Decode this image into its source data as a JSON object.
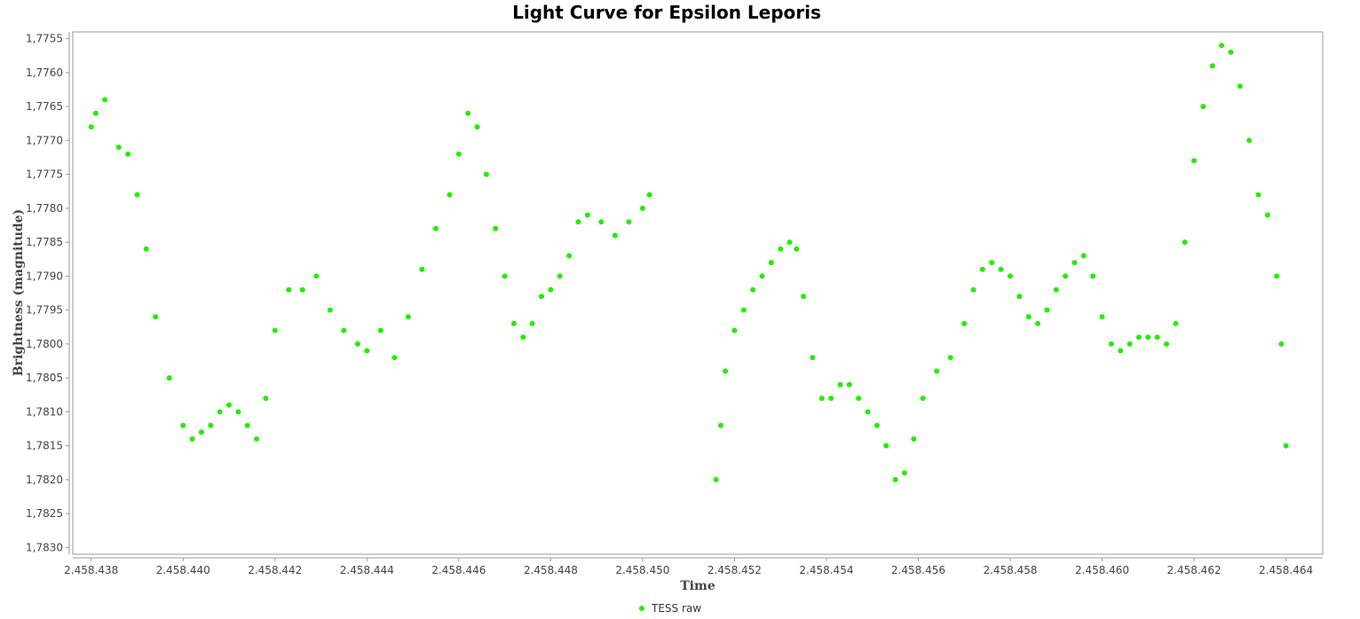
{
  "chart_data": {
    "type": "scatter",
    "title": "Light Curve for Epsilon Leporis",
    "xlabel": "Time",
    "ylabel": "Brightness (magnitude)",
    "xlim": [
      2458437.6,
      2458464.8
    ],
    "ylim": [
      1.7754,
      1.7831
    ],
    "y_inverted": true,
    "grid": false,
    "legend_position": "bottom-center",
    "x_ticks": [
      2458438,
      2458440,
      2458442,
      2458444,
      2458446,
      2458448,
      2458450,
      2458452,
      2458454,
      2458456,
      2458458,
      2458460,
      2458462,
      2458464
    ],
    "x_tick_labels": [
      "2.458.438",
      "2.458.440",
      "2.458.442",
      "2.458.444",
      "2.458.446",
      "2.458.448",
      "2.458.450",
      "2.458.452",
      "2.458.454",
      "2.458.456",
      "2.458.458",
      "2.458.460",
      "2.458.462",
      "2.458.464"
    ],
    "y_ticks": [
      1.7755,
      1.776,
      1.7765,
      1.777,
      1.7775,
      1.778,
      1.7785,
      1.779,
      1.7795,
      1.78,
      1.7805,
      1.781,
      1.7815,
      1.782,
      1.7825,
      1.783
    ],
    "y_tick_labels": [
      "1,7755",
      "1,7760",
      "1,7765",
      "1,7770",
      "1,7775",
      "1,7780",
      "1,7785",
      "1,7790",
      "1,7795",
      "1,7800",
      "1,7805",
      "1,7810",
      "1,7815",
      "1,7820",
      "1,7825",
      "1,7830"
    ],
    "series": [
      {
        "name": "TESS raw",
        "color": "#22ee00",
        "segments": [
          {
            "x": [
              2458438.0,
              2458438.1,
              2458438.3,
              2458438.6,
              2458438.8,
              2458439.0,
              2458439.2,
              2458439.4,
              2458439.7,
              2458440.0,
              2458440.2,
              2458440.4,
              2458440.6,
              2458440.8,
              2458441.0,
              2458441.2,
              2458441.4,
              2458441.6,
              2458441.8,
              2458442.0,
              2458442.3,
              2458442.6,
              2458442.9,
              2458443.2,
              2458443.5,
              2458443.8,
              2458444.0,
              2458444.3,
              2458444.6,
              2458444.9,
              2458445.2,
              2458445.5,
              2458445.8,
              2458446.0,
              2458446.2,
              2458446.4,
              2458446.6,
              2458446.8,
              2458447.0,
              2458447.2,
              2458447.4,
              2458447.6,
              2458447.8,
              2458448.0,
              2458448.2,
              2458448.4,
              2458448.6,
              2458448.8,
              2458449.1,
              2458449.4,
              2458449.7,
              2458450.0,
              2458450.15
            ],
            "y": [
              1.7768,
              1.7766,
              1.7764,
              1.7771,
              1.7772,
              1.7778,
              1.7786,
              1.7796,
              1.7805,
              1.7812,
              1.7814,
              1.7813,
              1.7812,
              1.781,
              1.7809,
              1.781,
              1.7812,
              1.7814,
              1.7808,
              1.7798,
              1.7792,
              1.7792,
              1.779,
              1.7795,
              1.7798,
              1.78,
              1.7801,
              1.7798,
              1.7802,
              1.7796,
              1.7789,
              1.7783,
              1.7778,
              1.7772,
              1.7766,
              1.7768,
              1.7775,
              1.7783,
              1.779,
              1.7797,
              1.7799,
              1.7797,
              1.7793,
              1.7792,
              1.779,
              1.7787,
              1.7782,
              1.7781,
              1.7782,
              1.7784,
              1.7782,
              1.778,
              1.7778
            ]
          },
          {
            "x": [
              2458451.6,
              2458451.7,
              2458451.8,
              2458452.0,
              2458452.2,
              2458452.4,
              2458452.6,
              2458452.8,
              2458453.0,
              2458453.2,
              2458453.35,
              2458453.5,
              2458453.7,
              2458453.9,
              2458454.1,
              2458454.3,
              2458454.5,
              2458454.7,
              2458454.9,
              2458455.1,
              2458455.3,
              2458455.5,
              2458455.7,
              2458455.9,
              2458456.1,
              2458456.4,
              2458456.7,
              2458457.0,
              2458457.2,
              2458457.4,
              2458457.6,
              2458457.8,
              2458458.0,
              2458458.2,
              2458458.4,
              2458458.6,
              2458458.8,
              2458459.0,
              2458459.2,
              2458459.4,
              2458459.6,
              2458459.8,
              2458460.0,
              2458460.2,
              2458460.4,
              2458460.6,
              2458460.8,
              2458461.0,
              2458461.2,
              2458461.4,
              2458461.6,
              2458461.8,
              2458462.0,
              2458462.2,
              2458462.4,
              2458462.6,
              2458462.8,
              2458463.0,
              2458463.2,
              2458463.4,
              2458463.6,
              2458463.8,
              2458463.9,
              2458464.0
            ],
            "y": [
              1.782,
              1.7812,
              1.7804,
              1.7798,
              1.7795,
              1.7792,
              1.779,
              1.7788,
              1.7786,
              1.7785,
              1.7786,
              1.7793,
              1.7802,
              1.7808,
              1.7808,
              1.7806,
              1.7806,
              1.7808,
              1.781,
              1.7812,
              1.7815,
              1.782,
              1.7819,
              1.7814,
              1.7808,
              1.7804,
              1.7802,
              1.7797,
              1.7792,
              1.7789,
              1.7788,
              1.7789,
              1.779,
              1.7793,
              1.7796,
              1.7797,
              1.7795,
              1.7792,
              1.779,
              1.7788,
              1.7787,
              1.779,
              1.7796,
              1.78,
              1.7801,
              1.78,
              1.7799,
              1.7799,
              1.7799,
              1.78,
              1.7797,
              1.7785,
              1.7773,
              1.7765,
              1.7759,
              1.7756,
              1.7757,
              1.7762,
              1.777,
              1.7778,
              1.7781,
              1.779,
              1.78,
              1.7815
            ]
          }
        ]
      }
    ]
  }
}
